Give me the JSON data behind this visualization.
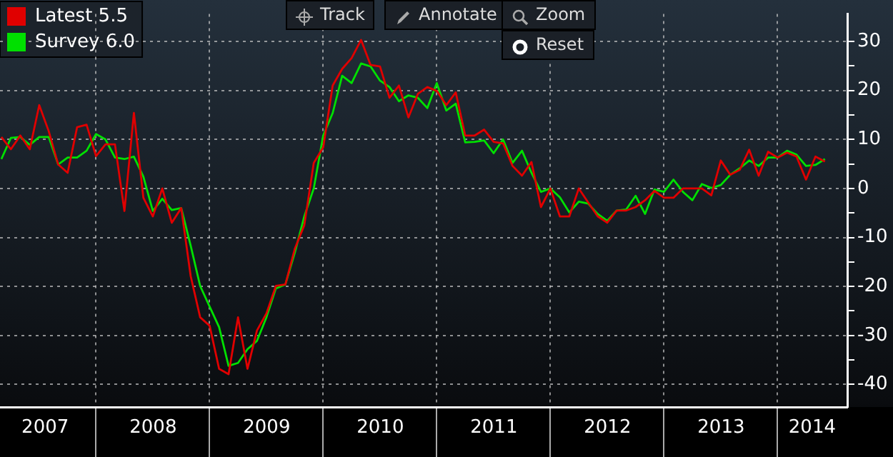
{
  "chart_data": {
    "type": "line",
    "x": [
      "2007-03",
      "2007-04",
      "2007-05",
      "2007-06",
      "2007-07",
      "2007-08",
      "2007-09",
      "2007-10",
      "2007-11",
      "2007-12",
      "2008-01",
      "2008-02",
      "2008-03",
      "2008-04",
      "2008-05",
      "2008-06",
      "2008-07",
      "2008-08",
      "2008-09",
      "2008-10",
      "2008-11",
      "2008-12",
      "2009-01",
      "2009-02",
      "2009-03",
      "2009-04",
      "2009-05",
      "2009-06",
      "2009-07",
      "2009-08",
      "2009-09",
      "2009-10",
      "2009-11",
      "2009-12",
      "2010-01",
      "2010-02",
      "2010-03",
      "2010-04",
      "2010-05",
      "2010-06",
      "2010-07",
      "2010-08",
      "2010-09",
      "2010-10",
      "2010-11",
      "2010-12",
      "2011-01",
      "2011-02",
      "2011-03",
      "2011-04",
      "2011-05",
      "2011-06",
      "2011-07",
      "2011-08",
      "2011-09",
      "2011-10",
      "2011-11",
      "2011-12",
      "2012-01",
      "2012-02",
      "2012-03",
      "2012-04",
      "2012-05",
      "2012-06",
      "2012-07",
      "2012-08",
      "2012-09",
      "2012-10",
      "2012-11",
      "2012-12",
      "2013-01",
      "2013-02",
      "2013-03",
      "2013-04",
      "2013-05",
      "2013-06",
      "2013-07",
      "2013-08",
      "2013-09",
      "2013-10",
      "2013-11",
      "2013-12",
      "2014-01",
      "2014-02",
      "2014-03",
      "2014-04",
      "2014-05",
      "2014-06"
    ],
    "series": [
      {
        "name": "Latest 5.5",
        "color": "#e00000",
        "values": [
          10.5,
          8,
          10.8,
          8,
          17,
          11.7,
          4.9,
          3.2,
          12.5,
          13,
          6.6,
          9,
          9,
          -4.6,
          15.4,
          -1.9,
          -5.7,
          0,
          -7,
          -4,
          -17.9,
          -26.3,
          -28,
          -36.8,
          -37.9,
          -26.3,
          -36.8,
          -29,
          -25.5,
          -19.9,
          -19.6,
          -12.3,
          -7.5,
          5.2,
          8.4,
          21,
          24.4,
          26.6,
          30.3,
          25.2,
          24.9,
          18.5,
          21,
          14.5,
          19.3,
          20.7,
          19.9,
          17,
          19.6,
          10.8,
          10.8,
          12,
          9.5,
          9.2,
          4.6,
          2.6,
          5.4,
          -3.8,
          0,
          -5.7,
          -5.7,
          0,
          -2.9,
          -5.7,
          -7,
          -4.5,
          -4.5,
          -3.8,
          -2.4,
          -0.5,
          -1.9,
          -1.9,
          0,
          0,
          0,
          -1.4,
          5.7,
          2.8,
          3.8,
          7.9,
          2.6,
          7.5,
          6.3,
          7.3,
          6.5,
          1.8,
          6.5,
          5.5
        ]
      },
      {
        "name": "Survey 6.0",
        "color": "#00e000",
        "values": [
          6,
          10.3,
          10.5,
          8.9,
          10.5,
          10.5,
          4.9,
          6.3,
          6.3,
          7.7,
          11.1,
          10,
          6.3,
          6,
          6.5,
          2.4,
          -4.6,
          -2.1,
          -4.4,
          -4,
          -11.7,
          -19.9,
          -24.1,
          -28.3,
          -36.2,
          -35.6,
          -32.8,
          -31.1,
          -26.3,
          -20.4,
          -19.6,
          -13.1,
          -5.7,
          0,
          10.8,
          15.4,
          23,
          21.5,
          25.5,
          24.9,
          22,
          20.7,
          17.8,
          19,
          18.5,
          16.4,
          21.5,
          15.9,
          17.3,
          9.4,
          9.5,
          9.8,
          7.2,
          10,
          5.2,
          7.7,
          3.2,
          -0.7,
          0,
          -1.8,
          -4.9,
          -2.7,
          -3.1,
          -5.2,
          -6.6,
          -4.5,
          -4.3,
          -1.5,
          -5.2,
          -0.2,
          -0.7,
          1.8,
          -0.7,
          -2.4,
          0.9,
          0.1,
          0.7,
          2.8,
          4.1,
          5.7,
          4.6,
          6.3,
          6.3,
          7.7,
          6.9,
          4.6,
          4.8,
          6
        ]
      }
    ],
    "xlim": [
      "2007-02-27",
      "2014-08-12"
    ],
    "xticks": [
      {
        "value": "2007-07-20",
        "label": "2007"
      },
      {
        "value": "2008",
        "label": null
      },
      {
        "value": "2008-07-02",
        "label": "2008"
      },
      {
        "value": "2009",
        "label": null
      },
      {
        "value": "2009-07-02",
        "label": "2009"
      },
      {
        "value": "2010",
        "label": null
      },
      {
        "value": "2010-07-02",
        "label": "2010"
      },
      {
        "value": "2011",
        "label": null
      },
      {
        "value": "2011-07-02",
        "label": "2011"
      },
      {
        "value": "2012",
        "label": null
      },
      {
        "value": "2012-07-02",
        "label": "2012"
      },
      {
        "value": "2013",
        "label": null
      },
      {
        "value": "2013-07-02",
        "label": "2013"
      },
      {
        "value": "2014",
        "label": null
      },
      {
        "value": "2014-04-21",
        "label": "2014"
      }
    ],
    "ylim": [
      -44.6,
      35.6
    ],
    "yticks": [
      -40,
      {
        "value": -35,
        "label": null
      },
      -30,
      {
        "value": -25,
        "label": null
      },
      -20,
      {
        "value": -15,
        "label": null
      },
      -10,
      {
        "value": -5,
        "label": null
      },
      0,
      {
        "value": 5,
        "label": null
      },
      10,
      {
        "value": 15,
        "label": null
      },
      20,
      {
        "value": 25,
        "label": null
      },
      30
    ],
    "grid": true,
    "legend": "top left",
    "line_style": "solid",
    "marker": "none",
    "annotations": [
      "Track",
      "Annotate",
      "Zoom",
      "Reset"
    ]
  }
}
